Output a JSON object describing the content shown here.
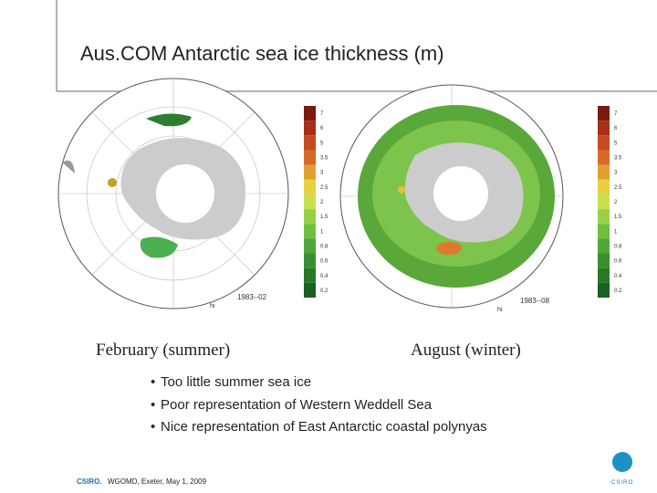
{
  "header": {
    "title": "Aus.COM Antarctic sea ice thickness (m)"
  },
  "panels": [
    {
      "caption": "February (summer)",
      "map_label": "1983--02",
      "variable": "hi",
      "colorbar_labels": [
        "7",
        "6",
        "5",
        "3.5",
        "3",
        "2.5",
        "2",
        "1.5",
        "1",
        "0.8",
        "0.6",
        "0.4",
        "0.2"
      ]
    },
    {
      "caption": "August (winter)",
      "map_label": "1983--08",
      "variable": "hi",
      "colorbar_labels": [
        "7",
        "6",
        "5",
        "3.5",
        "3",
        "2.5",
        "2",
        "1.5",
        "1",
        "0.8",
        "0.6",
        "0.4",
        "0.2"
      ]
    }
  ],
  "bullets": [
    "Too little summer sea ice",
    "Poor representation of Western Weddell Sea",
    "Nice representation of East Antarctic coastal polynyas"
  ],
  "footer": {
    "brand": "CSIRO.",
    "text": "WGOMD, Exeter, May 1, 2009",
    "logo_text": "CSIRO"
  }
}
